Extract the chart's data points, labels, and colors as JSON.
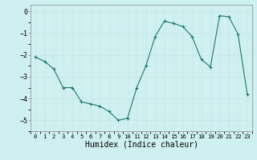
{
  "x": [
    0,
    1,
    2,
    3,
    4,
    5,
    6,
    7,
    8,
    9,
    10,
    11,
    12,
    13,
    14,
    15,
    16,
    17,
    18,
    19,
    20,
    21,
    22,
    23
  ],
  "y": [
    -2.1,
    -2.3,
    -2.65,
    -3.5,
    -3.5,
    -4.15,
    -4.25,
    -4.35,
    -4.6,
    -5.0,
    -4.9,
    -3.5,
    -2.5,
    -1.15,
    -0.45,
    -0.55,
    -0.7,
    -1.15,
    -2.2,
    -2.55,
    -0.2,
    -0.25,
    -1.05,
    -3.8
  ],
  "bg_color": "#cff0f0",
  "grid_color_major": "#c8e8e8",
  "line_color": "#1a7a6a",
  "marker_color": "#1a7a6a",
  "xlabel": "Humidex (Indice chaleur)",
  "xlabel_fontsize": 7,
  "tick_fontsize": 6,
  "ylim": [
    -5.5,
    0.3
  ],
  "yticks": [
    0,
    -1,
    -2,
    -3,
    -4,
    -5
  ],
  "xticks": [
    0,
    1,
    2,
    3,
    4,
    5,
    6,
    7,
    8,
    9,
    10,
    11,
    12,
    13,
    14,
    15,
    16,
    17,
    18,
    19,
    20,
    21,
    22,
    23
  ]
}
